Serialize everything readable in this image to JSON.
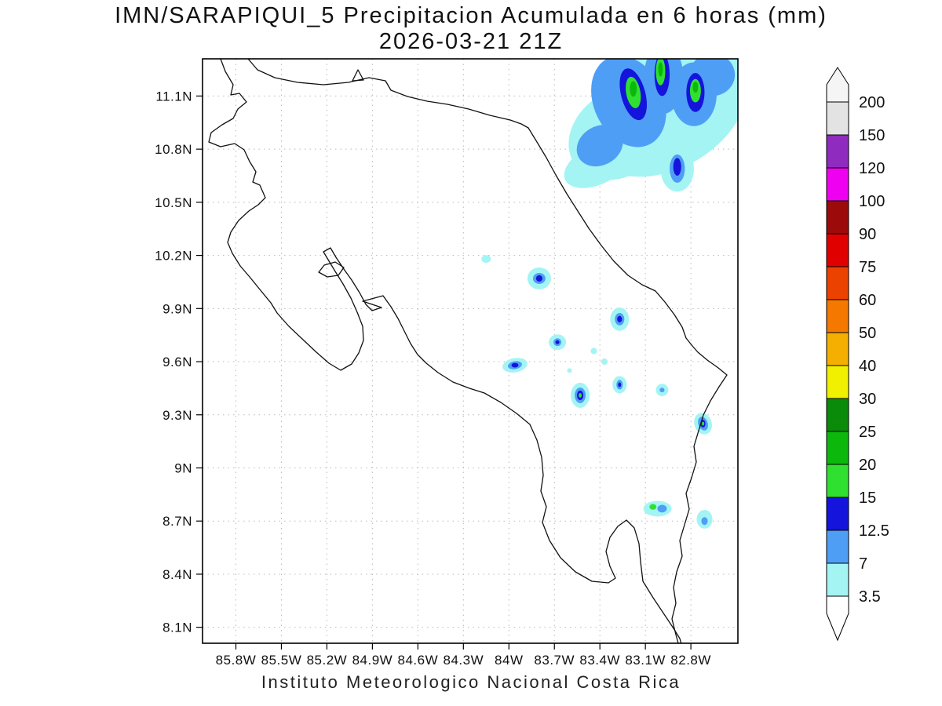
{
  "title": {
    "line1": "IMN/SARAPIQUI_5 Precipitacion Acumulada en 6 horas (mm)",
    "line2": "2026-03-21 21Z"
  },
  "caption": "Instituto Meteorologico Nacional Costa Rica",
  "chart_data": {
    "type": "heatmap",
    "title": "IMN/SARAPIQUI_5 Precipitacion Acumulada en 6 horas (mm)",
    "subtitle": "2026-03-21 21Z",
    "units": "mm",
    "grid": true,
    "legend_position": "right",
    "x_axis": {
      "ticks": [
        "85.8W",
        "85.5W",
        "85.2W",
        "84.9W",
        "84.6W",
        "84.3W",
        "84W",
        "83.7W",
        "83.4W",
        "83.1W",
        "82.8W"
      ],
      "values": [
        85.8,
        85.5,
        85.2,
        84.9,
        84.6,
        84.3,
        84.0,
        83.7,
        83.4,
        83.1,
        82.8
      ],
      "range_lonW": [
        86.02,
        82.49
      ]
    },
    "y_axis": {
      "ticks": [
        "11.1N",
        "10.8N",
        "10.5N",
        "10.2N",
        "9.9N",
        "9.6N",
        "9.3N",
        "9N",
        "8.7N",
        "8.4N",
        "8.1N"
      ],
      "values": [
        11.1,
        10.8,
        10.5,
        10.2,
        9.9,
        9.6,
        9.3,
        9.0,
        8.7,
        8.4,
        8.1
      ],
      "range_latN": [
        8.01,
        11.31
      ]
    },
    "colorbar": {
      "levels": [
        3.5,
        7,
        12.5,
        15,
        20,
        25,
        30,
        40,
        50,
        60,
        75,
        90,
        100,
        120,
        150,
        200
      ],
      "labels": [
        "3.5",
        "7",
        "12.5",
        "15",
        "20",
        "25",
        "30",
        "40",
        "50",
        "60",
        "75",
        "90",
        "100",
        "120",
        "150",
        "200"
      ],
      "colors": [
        "#a4f4f4",
        "#4f9ef5",
        "#1414dc",
        "#30e030",
        "#0cb80c",
        "#0a8c0a",
        "#f0f000",
        "#f5af00",
        "#f57800",
        "#eb4200",
        "#e00000",
        "#9c0a0a",
        "#f000f0",
        "#8f2bbf",
        "#e3e3e3"
      ],
      "below_color": "#ffffff",
      "above_color": "#f5f5f5"
    },
    "precip_features": [
      {
        "lonW": 82.96,
        "latN": 11.02,
        "rxDeg": 0.57,
        "ryDeg": 0.33,
        "rotDeg": -30,
        "level": 3.5
      },
      {
        "lonW": 83.27,
        "latN": 10.89,
        "rxDeg": 0.36,
        "ryDeg": 0.24,
        "rotDeg": -35,
        "level": 3.5
      },
      {
        "lonW": 83.42,
        "latN": 10.71,
        "rxDeg": 0.23,
        "ryDeg": 0.11,
        "rotDeg": -25,
        "level": 3.5
      },
      {
        "lonW": 82.7,
        "latN": 11.16,
        "rxDeg": 0.31,
        "ryDeg": 0.27,
        "rotDeg": 0,
        "level": 3.5
      },
      {
        "lonW": 82.89,
        "latN": 10.69,
        "rxDeg": 0.11,
        "ryDeg": 0.13,
        "rotDeg": 0,
        "level": 3.5
      },
      {
        "lonW": 83.21,
        "latN": 11.07,
        "rxDeg": 0.23,
        "ryDeg": 0.27,
        "rotDeg": -25,
        "level": 7
      },
      {
        "lonW": 82.98,
        "latN": 11.2,
        "rxDeg": 0.13,
        "ryDeg": 0.2,
        "rotDeg": 0,
        "level": 7
      },
      {
        "lonW": 82.78,
        "latN": 11.11,
        "rxDeg": 0.15,
        "ryDeg": 0.18,
        "rotDeg": 0,
        "level": 7
      },
      {
        "lonW": 83.4,
        "latN": 10.82,
        "rxDeg": 0.16,
        "ryDeg": 0.11,
        "rotDeg": -30,
        "level": 7
      },
      {
        "lonW": 82.66,
        "latN": 11.22,
        "rxDeg": 0.15,
        "ryDeg": 0.12,
        "rotDeg": 0,
        "level": 7
      },
      {
        "lonW": 82.89,
        "latN": 10.69,
        "rxDeg": 0.05,
        "ryDeg": 0.08,
        "rotDeg": 0,
        "level": 7
      },
      {
        "lonW": 83.18,
        "latN": 11.11,
        "rxDeg": 0.08,
        "ryDeg": 0.15,
        "rotDeg": -15,
        "level": 12.5
      },
      {
        "lonW": 82.99,
        "latN": 11.22,
        "rxDeg": 0.05,
        "ryDeg": 0.12,
        "rotDeg": 0,
        "level": 12.5
      },
      {
        "lonW": 82.77,
        "latN": 11.12,
        "rxDeg": 0.06,
        "ryDeg": 0.11,
        "rotDeg": 0,
        "level": 12.5
      },
      {
        "lonW": 82.89,
        "latN": 10.7,
        "rxDeg": 0.026,
        "ryDeg": 0.05,
        "rotDeg": 0,
        "level": 12.5
      },
      {
        "lonW": 83.18,
        "latN": 11.12,
        "rxDeg": 0.047,
        "ryDeg": 0.09,
        "rotDeg": -10,
        "level": 15
      },
      {
        "lonW": 83.0,
        "latN": 11.24,
        "rxDeg": 0.031,
        "ryDeg": 0.08,
        "rotDeg": 0,
        "level": 15
      },
      {
        "lonW": 82.77,
        "latN": 11.13,
        "rxDeg": 0.036,
        "ryDeg": 0.066,
        "rotDeg": 0,
        "level": 15
      },
      {
        "lonW": 83.18,
        "latN": 11.14,
        "rxDeg": 0.023,
        "ryDeg": 0.044,
        "rotDeg": 0,
        "level": 20
      },
      {
        "lonW": 82.77,
        "latN": 11.15,
        "rxDeg": 0.018,
        "ryDeg": 0.031,
        "rotDeg": 0,
        "level": 20
      },
      {
        "lonW": 83.0,
        "latN": 11.25,
        "rxDeg": 0.016,
        "ryDeg": 0.04,
        "rotDeg": 0,
        "level": 20
      },
      {
        "lonW": 84.15,
        "latN": 10.18,
        "rxDeg": 0.031,
        "ryDeg": 0.022,
        "rotDeg": 0,
        "level": 3.5
      },
      {
        "lonW": 83.8,
        "latN": 10.07,
        "rxDeg": 0.078,
        "ryDeg": 0.062,
        "rotDeg": 0,
        "level": 3.5
      },
      {
        "lonW": 83.8,
        "latN": 10.07,
        "rxDeg": 0.041,
        "ryDeg": 0.031,
        "rotDeg": 0,
        "level": 7
      },
      {
        "lonW": 83.8,
        "latN": 10.07,
        "rxDeg": 0.021,
        "ryDeg": 0.018,
        "rotDeg": 0,
        "level": 12.5
      },
      {
        "lonW": 83.27,
        "latN": 9.84,
        "rxDeg": 0.062,
        "ryDeg": 0.066,
        "rotDeg": 0,
        "level": 3.5
      },
      {
        "lonW": 83.27,
        "latN": 9.84,
        "rxDeg": 0.031,
        "ryDeg": 0.035,
        "rotDeg": 0,
        "level": 7
      },
      {
        "lonW": 83.27,
        "latN": 9.84,
        "rxDeg": 0.016,
        "ryDeg": 0.018,
        "rotDeg": 0,
        "level": 12.5
      },
      {
        "lonW": 83.68,
        "latN": 9.71,
        "rxDeg": 0.057,
        "ryDeg": 0.044,
        "rotDeg": 0,
        "level": 3.5
      },
      {
        "lonW": 83.68,
        "latN": 9.71,
        "rxDeg": 0.026,
        "ryDeg": 0.022,
        "rotDeg": 0,
        "level": 7
      },
      {
        "lonW": 83.68,
        "latN": 9.71,
        "rxDeg": 0.013,
        "ryDeg": 0.011,
        "rotDeg": 0,
        "level": 12.5
      },
      {
        "lonW": 83.96,
        "latN": 9.58,
        "rxDeg": 0.083,
        "ryDeg": 0.04,
        "rotDeg": -10,
        "level": 3.5
      },
      {
        "lonW": 83.96,
        "latN": 9.58,
        "rxDeg": 0.047,
        "ryDeg": 0.022,
        "rotDeg": -10,
        "level": 7
      },
      {
        "lonW": 83.96,
        "latN": 9.58,
        "rxDeg": 0.023,
        "ryDeg": 0.013,
        "rotDeg": 0,
        "level": 12.5
      },
      {
        "lonW": 83.53,
        "latN": 9.41,
        "rxDeg": 0.062,
        "ryDeg": 0.071,
        "rotDeg": 0,
        "level": 3.5
      },
      {
        "lonW": 83.53,
        "latN": 9.41,
        "rxDeg": 0.036,
        "ryDeg": 0.044,
        "rotDeg": 0,
        "level": 7
      },
      {
        "lonW": 83.53,
        "latN": 9.41,
        "rxDeg": 0.021,
        "ryDeg": 0.027,
        "rotDeg": 0,
        "level": 12.5
      },
      {
        "lonW": 83.53,
        "latN": 9.41,
        "rxDeg": 0.01,
        "ryDeg": 0.013,
        "rotDeg": 0,
        "level": 15
      },
      {
        "lonW": 83.27,
        "latN": 9.47,
        "rxDeg": 0.047,
        "ryDeg": 0.049,
        "rotDeg": 0,
        "level": 3.5
      },
      {
        "lonW": 83.27,
        "latN": 9.47,
        "rxDeg": 0.021,
        "ryDeg": 0.027,
        "rotDeg": 0,
        "level": 7
      },
      {
        "lonW": 83.27,
        "latN": 9.47,
        "rxDeg": 0.01,
        "ryDeg": 0.013,
        "rotDeg": 0,
        "level": 12.5
      },
      {
        "lonW": 82.99,
        "latN": 9.44,
        "rxDeg": 0.041,
        "ryDeg": 0.035,
        "rotDeg": 0,
        "level": 3.5
      },
      {
        "lonW": 82.99,
        "latN": 9.44,
        "rxDeg": 0.016,
        "ryDeg": 0.013,
        "rotDeg": 0,
        "level": 7
      },
      {
        "lonW": 82.72,
        "latN": 9.25,
        "rxDeg": 0.057,
        "ryDeg": 0.062,
        "rotDeg": -20,
        "level": 3.5
      },
      {
        "lonW": 82.72,
        "latN": 9.25,
        "rxDeg": 0.031,
        "ryDeg": 0.04,
        "rotDeg": -20,
        "level": 7
      },
      {
        "lonW": 82.72,
        "latN": 9.25,
        "rxDeg": 0.016,
        "ryDeg": 0.022,
        "rotDeg": 0,
        "level": 12.5
      },
      {
        "lonW": 82.72,
        "latN": 9.25,
        "rxDeg": 0.008,
        "ryDeg": 0.011,
        "rotDeg": 0,
        "level": 15
      },
      {
        "lonW": 83.02,
        "latN": 8.77,
        "rxDeg": 0.093,
        "ryDeg": 0.044,
        "rotDeg": 0,
        "level": 3.5
      },
      {
        "lonW": 82.99,
        "latN": 8.77,
        "rxDeg": 0.031,
        "ryDeg": 0.022,
        "rotDeg": 0,
        "level": 7
      },
      {
        "lonW": 83.05,
        "latN": 8.78,
        "rxDeg": 0.023,
        "ryDeg": 0.016,
        "rotDeg": 0,
        "level": 15
      },
      {
        "lonW": 82.71,
        "latN": 8.71,
        "rxDeg": 0.052,
        "ryDeg": 0.053,
        "rotDeg": 0,
        "level": 3.5
      },
      {
        "lonW": 82.71,
        "latN": 8.7,
        "rxDeg": 0.021,
        "ryDeg": 0.022,
        "rotDeg": 0,
        "level": 7
      },
      {
        "lonW": 83.44,
        "latN": 9.66,
        "rxDeg": 0.021,
        "ryDeg": 0.018,
        "rotDeg": 0,
        "level": 3.5
      },
      {
        "lonW": 83.37,
        "latN": 9.6,
        "rxDeg": 0.021,
        "ryDeg": 0.018,
        "rotDeg": 0,
        "level": 3.5
      },
      {
        "lonW": 83.6,
        "latN": 9.55,
        "rxDeg": 0.016,
        "ryDeg": 0.013,
        "rotDeg": 0,
        "level": 3.5
      }
    ]
  }
}
